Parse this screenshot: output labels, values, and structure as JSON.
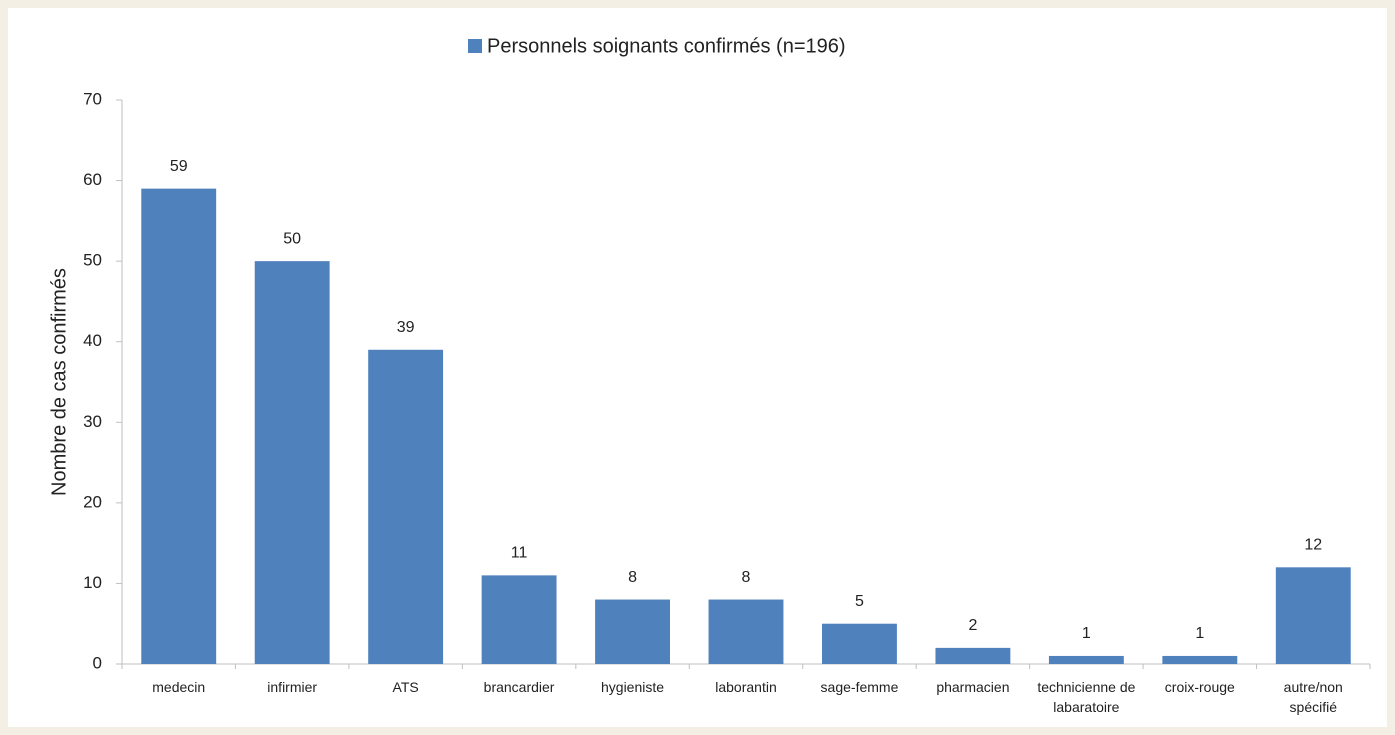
{
  "chart_data": {
    "type": "bar",
    "y_label": "Nombre de cas confirmés",
    "categories": [
      "medecin",
      "infirmier",
      "ATS",
      "brancardier",
      "hygieniste",
      "laborantin",
      "sage-femme",
      "pharmacien",
      "technicienne de labaratoire",
      "croix-rouge",
      "autre/non spécifié"
    ],
    "series": [
      {
        "name": "Personnels soignants confirmés (n=196)",
        "color": "#4f81bd",
        "values": [
          59,
          50,
          39,
          11,
          8,
          8,
          5,
          2,
          1,
          1,
          12
        ]
      }
    ],
    "ylim": [
      0,
      70
    ],
    "yticks": [
      0,
      10,
      20,
      30,
      40,
      50,
      60,
      70
    ],
    "grid": false,
    "legend": "top"
  }
}
